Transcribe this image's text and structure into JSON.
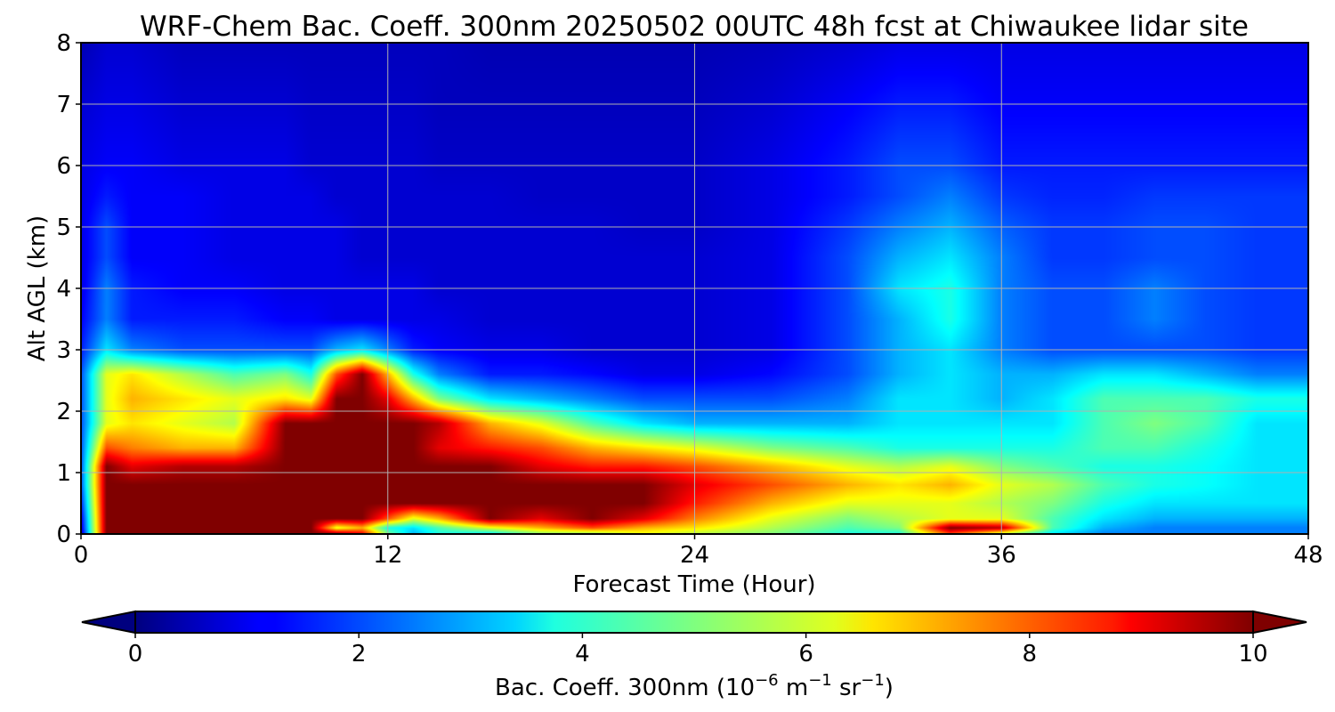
{
  "chart_data": {
    "type": "heatmap",
    "title": "WRF-Chem Bac. Coeff. 300nm  20250502 00UTC 48h fcst at Chiwaukee lidar site",
    "xlabel": "Forecast Time (Hour)",
    "ylabel": "Alt AGL (km)",
    "xlim": [
      0,
      48
    ],
    "ylim": [
      0,
      8
    ],
    "x_ticks": [
      "0",
      "12",
      "24",
      "36",
      "48"
    ],
    "y_ticks": [
      "0",
      "1",
      "2",
      "3",
      "4",
      "5",
      "6",
      "7",
      "8"
    ],
    "grid": true,
    "colormap": "jet",
    "colorbar": {
      "label_main": "Bac. Coeff. 300nm  (10",
      "label_exp1": "−6",
      "label_mid": " m",
      "label_exp2": "−1",
      "label_mid2": " sr",
      "label_exp3": "−1",
      "label_end": ")",
      "range": [
        0,
        10
      ],
      "ticks": [
        "0",
        "2",
        "4",
        "6",
        "8",
        "10"
      ],
      "extend": "both",
      "orientation": "horizontal"
    },
    "x_hours": [
      0,
      1,
      2,
      4,
      6,
      8,
      9,
      10,
      11,
      12,
      13,
      14,
      16,
      18,
      20,
      22,
      24,
      27,
      30,
      32,
      34,
      36,
      38,
      40,
      42,
      44,
      46,
      48
    ],
    "z_km": [
      0,
      0.1,
      0.25,
      0.5,
      0.8,
      1.1,
      1.4,
      1.8,
      2.2,
      2.6,
      3.0,
      3.5,
      4.0,
      4.5,
      5.0,
      5.5,
      6.0,
      7.0,
      8.0
    ],
    "values": [
      [
        0.5,
        10,
        10,
        10,
        10,
        10,
        10,
        10,
        9,
        5,
        3,
        4,
        3.5,
        5,
        5,
        6,
        5.5,
        5,
        4,
        4,
        8,
        5.5,
        3.5,
        2.5,
        2.5,
        2.5,
        2.5,
        2.5
      ],
      [
        0.8,
        10,
        10,
        10,
        10,
        10,
        10,
        6,
        7,
        4,
        3.5,
        4.5,
        6,
        7,
        8,
        7,
        6.5,
        5.5,
        4.5,
        5,
        10,
        9.5,
        4.5,
        3,
        2.5,
        2.5,
        2.5,
        2.5
      ],
      [
        1,
        10,
        10,
        10,
        10,
        10,
        10,
        10,
        10,
        8,
        6,
        7,
        10,
        9,
        10,
        9,
        7.5,
        6,
        5,
        5.5,
        6,
        6,
        4.5,
        3.5,
        3,
        3,
        3,
        3
      ],
      [
        1.5,
        10,
        10,
        10,
        10,
        10,
        10,
        10,
        10,
        10,
        10,
        10,
        10,
        10,
        10,
        10,
        8.5,
        7,
        6,
        6,
        6,
        5.5,
        5,
        4,
        3.5,
        3.5,
        3.5,
        3.5
      ],
      [
        2,
        10,
        10,
        10,
        10,
        10,
        10,
        10,
        10,
        10,
        10,
        10,
        10,
        10,
        10,
        10,
        9,
        8,
        7,
        6.5,
        7,
        6,
        5.5,
        4.5,
        4,
        3.8,
        3.5,
        3.5
      ],
      [
        2,
        10,
        9,
        9.5,
        9.5,
        10,
        10,
        10,
        10,
        10,
        10,
        10,
        10,
        9,
        8.5,
        8.5,
        8,
        7,
        6,
        5.5,
        6,
        5,
        4.5,
        4,
        4,
        3.8,
        3.5,
        3.5
      ],
      [
        2,
        8,
        7.5,
        7,
        7,
        10,
        10,
        10,
        10,
        10,
        10,
        9,
        8.5,
        8,
        7,
        6.5,
        6,
        5,
        4.5,
        4,
        4,
        4,
        4,
        4.5,
        4.5,
        4,
        3.5,
        3.5
      ],
      [
        2,
        6,
        6.5,
        6,
        5.5,
        10,
        10,
        10,
        10,
        10,
        10,
        9.5,
        7,
        6,
        4.5,
        3.5,
        3,
        3,
        3,
        3.5,
        3.5,
        3.5,
        3.5,
        4.5,
        5,
        4.5,
        3.5,
        3.5
      ],
      [
        2,
        6,
        7,
        6.5,
        6,
        6.5,
        6,
        10,
        10,
        9,
        7,
        5,
        3.5,
        3,
        2.5,
        2,
        2,
        2,
        2.5,
        3.5,
        3.5,
        3,
        3.5,
        4.5,
        4.5,
        4.5,
        4,
        4
      ],
      [
        2,
        6,
        6.5,
        5.5,
        4.5,
        5,
        4,
        8,
        10,
        7,
        4,
        2.5,
        1.5,
        1.5,
        1.3,
        1,
        1,
        1.3,
        2,
        3,
        3.5,
        3,
        3,
        3.5,
        3.5,
        3,
        2.5,
        2.5
      ],
      [
        1.5,
        3.5,
        2.5,
        2,
        2,
        2,
        2,
        3,
        3.5,
        2.5,
        1.5,
        1.2,
        1,
        1,
        0.8,
        0.8,
        0.8,
        1,
        2,
        3,
        3.5,
        2.5,
        2,
        2,
        2,
        2,
        1.8,
        1.8
      ],
      [
        1.2,
        2.5,
        1.5,
        1.5,
        1.5,
        1.2,
        1.2,
        1,
        1,
        1,
        1,
        1,
        0.8,
        0.8,
        0.8,
        0.8,
        0.8,
        1,
        2,
        3,
        4,
        2.5,
        2,
        2,
        2.5,
        2,
        1.8,
        1.8
      ],
      [
        1,
        2.5,
        1.5,
        1.2,
        1.2,
        1,
        1,
        1,
        1,
        1,
        1,
        0.8,
        0.8,
        0.8,
        0.8,
        0.8,
        0.8,
        1,
        2,
        3.5,
        4,
        2.5,
        2,
        2,
        2.5,
        2,
        1.8,
        1.8
      ],
      [
        1,
        2,
        1.2,
        1.2,
        1,
        1,
        1,
        1,
        0.8,
        0.8,
        0.8,
        0.8,
        0.8,
        0.8,
        0.8,
        0.8,
        0.8,
        1,
        2,
        3,
        3.5,
        2.5,
        1.8,
        1.8,
        2,
        2,
        1.8,
        1.8
      ],
      [
        1,
        2,
        1.2,
        1.2,
        1,
        1,
        1,
        1,
        0.8,
        0.8,
        0.8,
        0.8,
        0.8,
        0.8,
        0.8,
        0.7,
        0.7,
        1,
        1.8,
        2.5,
        3,
        2.2,
        1.8,
        1.8,
        2,
        2,
        1.8,
        1.8
      ],
      [
        1,
        1.5,
        1.2,
        1.2,
        1,
        1,
        1,
        0.8,
        0.8,
        0.8,
        0.8,
        0.8,
        0.8,
        0.7,
        0.7,
        0.7,
        0.7,
        1,
        1.5,
        2,
        2.5,
        1.8,
        1.6,
        1.6,
        1.8,
        1.8,
        1.8,
        1.8
      ],
      [
        1,
        1.2,
        1.2,
        1,
        1,
        1,
        0.8,
        0.8,
        0.8,
        0.8,
        0.8,
        0.7,
        0.7,
        0.7,
        0.7,
        0.7,
        0.7,
        1,
        1.5,
        2,
        2,
        1.5,
        1.5,
        1.5,
        1.5,
        1.5,
        1.5,
        1.5
      ],
      [
        0.8,
        1,
        1,
        0.8,
        0.8,
        0.8,
        0.7,
        0.7,
        0.7,
        0.7,
        0.7,
        0.6,
        0.6,
        0.6,
        0.6,
        0.6,
        0.6,
        0.8,
        1.2,
        1.5,
        1.5,
        1.2,
        1.2,
        1.2,
        1.2,
        1.2,
        1.2,
        1.2
      ],
      [
        0.5,
        0.8,
        0.8,
        0.6,
        0.6,
        0.6,
        0.6,
        0.6,
        0.6,
        0.6,
        0.6,
        0.6,
        0.5,
        0.5,
        0.5,
        0.5,
        0.5,
        0.6,
        0.8,
        1,
        1,
        1,
        1,
        1,
        1,
        1,
        1,
        1
      ]
    ]
  }
}
